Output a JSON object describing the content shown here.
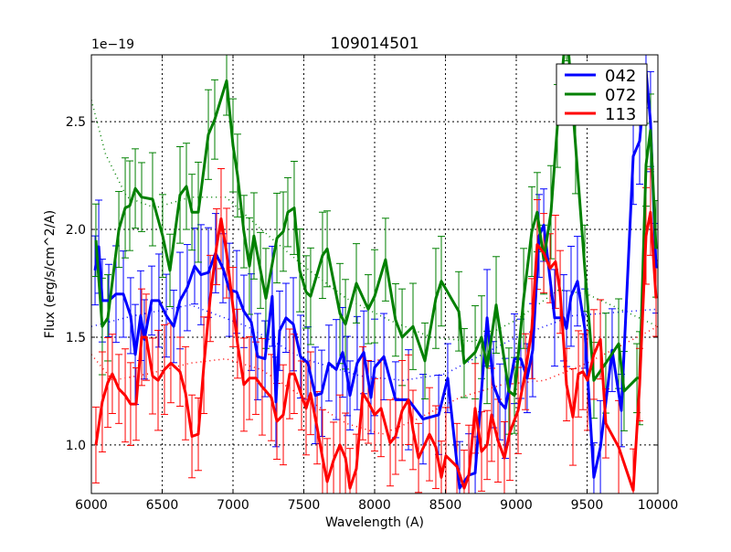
{
  "chart_data": {
    "type": "line",
    "title": "109014501",
    "xlabel": "Wavelength (A)",
    "ylabel": "Flux (erg/s/cm^2/A)",
    "y_offset_label": "1e−19",
    "xlim": [
      6000,
      10000
    ],
    "ylim": [
      0.775,
      2.81
    ],
    "grid": true,
    "legend_position": "top-right",
    "x_ticks": [
      6000,
      6500,
      7000,
      7500,
      8000,
      8500,
      9000,
      9500,
      10000
    ],
    "x_tick_labels": [
      "6000",
      "6500",
      "7000",
      "7500",
      "8000",
      "8500",
      "9000",
      "9500",
      "10000"
    ],
    "y_ticks": [
      1.0,
      1.5,
      2.0,
      2.5
    ],
    "y_tick_labels": [
      "1.0",
      "1.5",
      "2.0",
      "2.5"
    ],
    "series": [
      {
        "name": "042",
        "color": "#0000ff",
        "error": 0.2,
        "points": [
          [
            6026,
            1.81
          ],
          [
            6052,
            1.92
          ],
          [
            6077,
            1.67
          ],
          [
            6123,
            1.67
          ],
          [
            6174,
            1.7
          ],
          [
            6226,
            1.7
          ],
          [
            6277,
            1.6
          ],
          [
            6310,
            1.42
          ],
          [
            6348,
            1.6
          ],
          [
            6374,
            1.49
          ],
          [
            6426,
            1.67
          ],
          [
            6477,
            1.67
          ],
          [
            6529,
            1.6
          ],
          [
            6581,
            1.55
          ],
          [
            6626,
            1.67
          ],
          [
            6677,
            1.73
          ],
          [
            6729,
            1.83
          ],
          [
            6774,
            1.79
          ],
          [
            6826,
            1.8
          ],
          [
            6877,
            1.89
          ],
          [
            6929,
            1.82
          ],
          [
            6974,
            1.72
          ],
          [
            7026,
            1.71
          ],
          [
            7077,
            1.62
          ],
          [
            7129,
            1.57
          ],
          [
            7174,
            1.41
          ],
          [
            7226,
            1.4
          ],
          [
            7277,
            1.69
          ],
          [
            7303,
            1.2
          ],
          [
            7329,
            1.53
          ],
          [
            7374,
            1.59
          ],
          [
            7426,
            1.56
          ],
          [
            7477,
            1.41
          ],
          [
            7529,
            1.38
          ],
          [
            7581,
            1.23
          ],
          [
            7626,
            1.24
          ],
          [
            7677,
            1.38
          ],
          [
            7729,
            1.35
          ],
          [
            7774,
            1.43
          ],
          [
            7806,
            1.32
          ],
          [
            7826,
            1.23
          ],
          [
            7877,
            1.38
          ],
          [
            7923,
            1.43
          ],
          [
            7974,
            1.22
          ],
          [
            8000,
            1.36
          ],
          [
            8065,
            1.41
          ],
          [
            8148,
            1.21
          ],
          [
            8239,
            1.21
          ],
          [
            8342,
            1.12
          ],
          [
            8452,
            1.14
          ],
          [
            8516,
            1.31
          ],
          [
            8600,
            0.8
          ],
          [
            8665,
            0.86
          ],
          [
            8710,
            0.87
          ],
          [
            8794,
            1.59
          ],
          [
            8839,
            1.28
          ],
          [
            8884,
            1.2
          ],
          [
            8923,
            1.17
          ],
          [
            8987,
            1.4
          ],
          [
            9032,
            1.4
          ],
          [
            9077,
            1.31
          ],
          [
            9116,
            1.44
          ],
          [
            9161,
            1.97
          ],
          [
            9194,
            2.02
          ],
          [
            9271,
            1.59
          ],
          [
            9335,
            1.59
          ],
          [
            9355,
            1.54
          ],
          [
            9387,
            1.69
          ],
          [
            9432,
            1.76
          ],
          [
            9484,
            1.54
          ],
          [
            9548,
            0.85
          ],
          [
            9594,
            0.99
          ],
          [
            9677,
            1.44
          ],
          [
            9742,
            1.16
          ],
          [
            9826,
            2.34
          ],
          [
            9871,
            2.41
          ],
          [
            9916,
            2.74
          ],
          [
            9948,
            2.5
          ],
          [
            9987,
            1.82
          ]
        ],
        "model": [
          [
            6000,
            1.55
          ],
          [
            6300,
            1.6
          ],
          [
            6700,
            1.65
          ],
          [
            7100,
            1.55
          ],
          [
            7500,
            1.4
          ],
          [
            7900,
            1.32
          ],
          [
            8200,
            1.3
          ],
          [
            8500,
            1.33
          ],
          [
            8700,
            1.4
          ],
          [
            9000,
            1.5
          ],
          [
            9400,
            1.6
          ],
          [
            10000,
            1.63
          ]
        ]
      },
      {
        "name": "072",
        "color": "#008000",
        "error": 0.2,
        "points": [
          [
            6032,
            1.95
          ],
          [
            6077,
            1.55
          ],
          [
            6116,
            1.59
          ],
          [
            6194,
            2.0
          ],
          [
            6239,
            2.1
          ],
          [
            6271,
            2.11
          ],
          [
            6310,
            2.19
          ],
          [
            6355,
            2.15
          ],
          [
            6432,
            2.14
          ],
          [
            6503,
            1.97
          ],
          [
            6555,
            1.81
          ],
          [
            6626,
            2.16
          ],
          [
            6671,
            2.2
          ],
          [
            6710,
            2.08
          ],
          [
            6755,
            2.08
          ],
          [
            6826,
            2.44
          ],
          [
            6871,
            2.51
          ],
          [
            6955,
            2.69
          ],
          [
            7000,
            2.39
          ],
          [
            7032,
            2.25
          ],
          [
            7077,
            1.99
          ],
          [
            7116,
            1.83
          ],
          [
            7148,
            1.97
          ],
          [
            7194,
            1.81
          ],
          [
            7232,
            1.68
          ],
          [
            7310,
            1.96
          ],
          [
            7355,
            1.99
          ],
          [
            7387,
            2.08
          ],
          [
            7432,
            2.1
          ],
          [
            7471,
            1.81
          ],
          [
            7516,
            1.71
          ],
          [
            7548,
            1.69
          ],
          [
            7632,
            1.88
          ],
          [
            7665,
            1.91
          ],
          [
            7755,
            1.61
          ],
          [
            7794,
            1.56
          ],
          [
            7871,
            1.75
          ],
          [
            7955,
            1.63
          ],
          [
            8000,
            1.69
          ],
          [
            8077,
            1.86
          ],
          [
            8148,
            1.58
          ],
          [
            8194,
            1.5
          ],
          [
            8271,
            1.55
          ],
          [
            8355,
            1.39
          ],
          [
            8432,
            1.68
          ],
          [
            8471,
            1.76
          ],
          [
            8594,
            1.62
          ],
          [
            8632,
            1.38
          ],
          [
            8710,
            1.43
          ],
          [
            8755,
            1.5
          ],
          [
            8794,
            1.36
          ],
          [
            8858,
            1.65
          ],
          [
            8948,
            1.25
          ],
          [
            8987,
            1.23
          ],
          [
            9052,
            1.68
          ],
          [
            9110,
            1.99
          ],
          [
            9148,
            2.08
          ],
          [
            9194,
            1.86
          ],
          [
            9245,
            2.08
          ],
          [
            9290,
            2.48
          ],
          [
            9355,
            2.95
          ],
          [
            9419,
            2.39
          ],
          [
            9484,
            1.82
          ],
          [
            9548,
            1.3
          ],
          [
            9632,
            1.38
          ],
          [
            9723,
            1.47
          ],
          [
            9761,
            1.25
          ],
          [
            9852,
            1.31
          ],
          [
            9871,
            1.31
          ],
          [
            9916,
            2.3
          ],
          [
            9948,
            2.46
          ],
          [
            9987,
            1.91
          ]
        ],
        "model": [
          [
            6000,
            2.6
          ],
          [
            6100,
            2.35
          ],
          [
            6250,
            2.15
          ],
          [
            6450,
            2.1
          ],
          [
            6700,
            2.15
          ],
          [
            6950,
            2.15
          ],
          [
            7200,
            2.0
          ],
          [
            7500,
            1.83
          ],
          [
            7800,
            1.68
          ],
          [
            8100,
            1.58
          ],
          [
            8400,
            1.5
          ],
          [
            8700,
            1.48
          ],
          [
            9000,
            1.58
          ],
          [
            9300,
            1.72
          ],
          [
            9500,
            1.7
          ],
          [
            10000,
            1.55
          ]
        ]
      },
      {
        "name": "113",
        "color": "#ff0000",
        "error": 0.2,
        "points": [
          [
            6032,
            1.0
          ],
          [
            6077,
            1.2
          ],
          [
            6116,
            1.29
          ],
          [
            6148,
            1.33
          ],
          [
            6194,
            1.26
          ],
          [
            6239,
            1.23
          ],
          [
            6277,
            1.19
          ],
          [
            6316,
            1.19
          ],
          [
            6355,
            1.5
          ],
          [
            6387,
            1.5
          ],
          [
            6432,
            1.32
          ],
          [
            6471,
            1.3
          ],
          [
            6516,
            1.35
          ],
          [
            6561,
            1.38
          ],
          [
            6626,
            1.34
          ],
          [
            6665,
            1.24
          ],
          [
            6710,
            1.04
          ],
          [
            6755,
            1.05
          ],
          [
            6794,
            1.37
          ],
          [
            6839,
            1.68
          ],
          [
            6884,
            1.92
          ],
          [
            6916,
            2.05
          ],
          [
            6955,
            1.89
          ],
          [
            7000,
            1.64
          ],
          [
            7032,
            1.47
          ],
          [
            7077,
            1.28
          ],
          [
            7116,
            1.31
          ],
          [
            7161,
            1.31
          ],
          [
            7206,
            1.27
          ],
          [
            7271,
            1.22
          ],
          [
            7310,
            1.11
          ],
          [
            7355,
            1.14
          ],
          [
            7400,
            1.33
          ],
          [
            7432,
            1.33
          ],
          [
            7484,
            1.23
          ],
          [
            7516,
            1.17
          ],
          [
            7548,
            1.24
          ],
          [
            7594,
            1.08
          ],
          [
            7632,
            0.94
          ],
          [
            7665,
            0.83
          ],
          [
            7710,
            0.93
          ],
          [
            7755,
            1.0
          ],
          [
            7794,
            0.94
          ],
          [
            7826,
            0.8
          ],
          [
            7871,
            0.89
          ],
          [
            7916,
            1.24
          ],
          [
            7955,
            1.2
          ],
          [
            8000,
            1.14
          ],
          [
            8045,
            1.17
          ],
          [
            8110,
            1.01
          ],
          [
            8148,
            1.04
          ],
          [
            8194,
            1.16
          ],
          [
            8239,
            1.21
          ],
          [
            8271,
            1.07
          ],
          [
            8310,
            0.94
          ],
          [
            8387,
            1.05
          ],
          [
            8432,
            0.99
          ],
          [
            8471,
            0.85
          ],
          [
            8503,
            0.95
          ],
          [
            8581,
            0.9
          ],
          [
            8632,
            0.8
          ],
          [
            8665,
            0.86
          ],
          [
            8710,
            1.17
          ],
          [
            8755,
            0.97
          ],
          [
            8794,
            1.0
          ],
          [
            8826,
            1.14
          ],
          [
            8871,
            1.02
          ],
          [
            8916,
            0.94
          ],
          [
            8955,
            1.06
          ],
          [
            9013,
            1.16
          ],
          [
            9065,
            1.34
          ],
          [
            9110,
            1.54
          ],
          [
            9148,
            1.93
          ],
          [
            9194,
            1.89
          ],
          [
            9239,
            1.82
          ],
          [
            9277,
            1.85
          ],
          [
            9310,
            1.71
          ],
          [
            9355,
            1.28
          ],
          [
            9400,
            1.13
          ],
          [
            9439,
            1.33
          ],
          [
            9471,
            1.34
          ],
          [
            9503,
            1.3
          ],
          [
            9548,
            1.42
          ],
          [
            9594,
            1.49
          ],
          [
            9632,
            1.1
          ],
          [
            9723,
            0.99
          ],
          [
            9826,
            0.79
          ],
          [
            9871,
            1.28
          ],
          [
            9916,
            1.97
          ],
          [
            9948,
            2.08
          ],
          [
            9987,
            1.68
          ]
        ],
        "model": [
          [
            6000,
            1.42
          ],
          [
            6150,
            1.3
          ],
          [
            6400,
            1.33
          ],
          [
            6700,
            1.38
          ],
          [
            6950,
            1.4
          ],
          [
            7200,
            1.35
          ],
          [
            7500,
            1.22
          ],
          [
            7800,
            1.1
          ],
          [
            8050,
            1.05
          ],
          [
            8300,
            1.12
          ],
          [
            8600,
            1.22
          ],
          [
            8900,
            1.28
          ],
          [
            9200,
            1.3
          ],
          [
            9500,
            1.38
          ],
          [
            10000,
            1.55
          ]
        ]
      }
    ]
  }
}
